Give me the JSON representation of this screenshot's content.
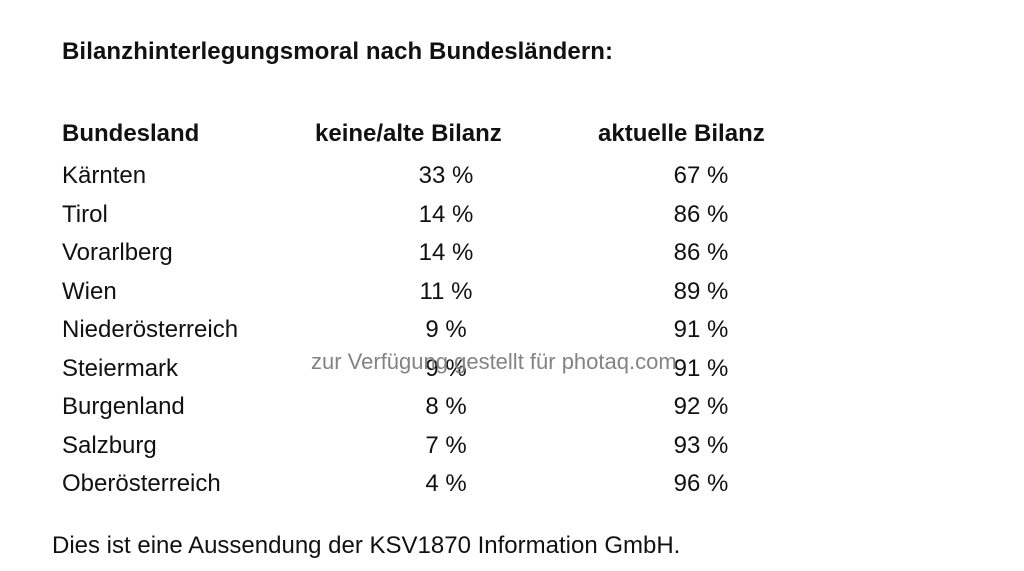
{
  "title": "Bilanzhinterlegungsmoral nach Bundesländern:",
  "table": {
    "headers": [
      "Bundesland",
      "keine/alte Bilanz",
      "aktuelle Bilanz"
    ],
    "rows": [
      {
        "land": "Kärnten",
        "old": "33 %",
        "current": "67 %"
      },
      {
        "land": "Tirol",
        "old": "14 %",
        "current": "86 %"
      },
      {
        "land": "Vorarlberg",
        "old": "14 %",
        "current": "86 %"
      },
      {
        "land": "Wien",
        "old": "11 %",
        "current": "89 %"
      },
      {
        "land": "Niederösterreich",
        "old": "9 %",
        "current": "91 %"
      },
      {
        "land": "Steiermark",
        "old": "9 %",
        "current": "91 %"
      },
      {
        "land": "Burgenland",
        "old": "8 %",
        "current": "92 %"
      },
      {
        "land": "Salzburg",
        "old": "7 %",
        "current": "93 %"
      },
      {
        "land": "Oberösterreich",
        "old": "4 %",
        "current": "96 %"
      }
    ]
  },
  "watermark": "zur Verfügung gestellt für photaq.com",
  "footer": "Dies ist eine Aussendung der KSV1870 Information GmbH."
}
